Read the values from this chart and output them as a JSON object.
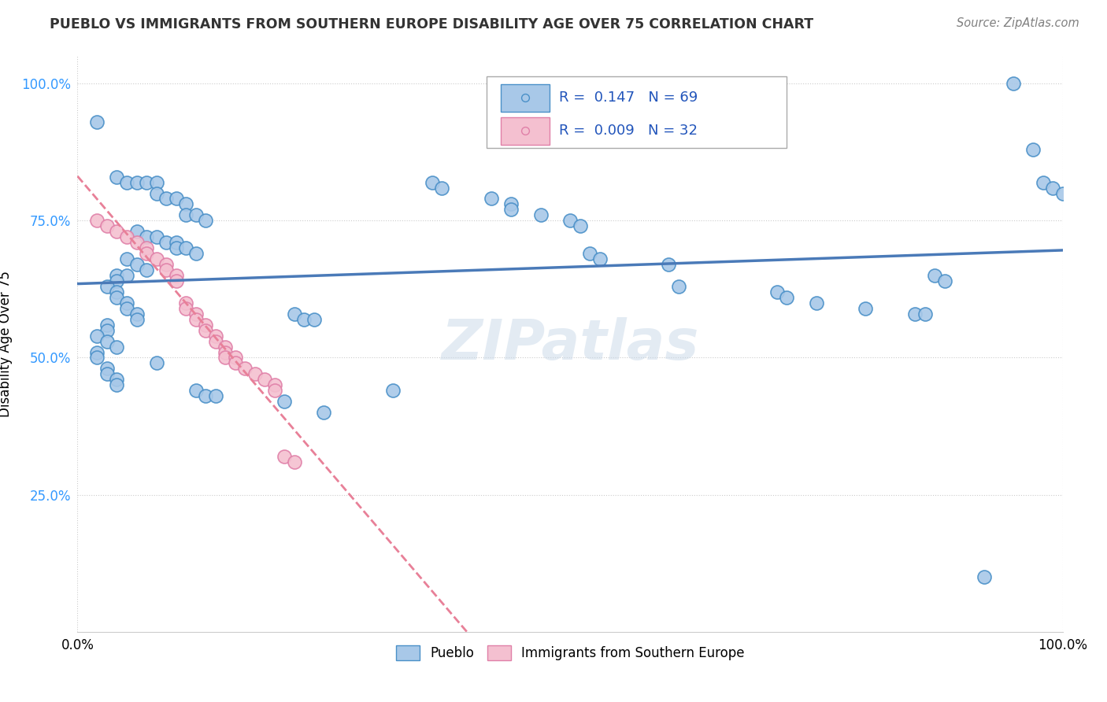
{
  "title": "PUEBLO VS IMMIGRANTS FROM SOUTHERN EUROPE DISABILITY AGE OVER 75 CORRELATION CHART",
  "source": "Source: ZipAtlas.com",
  "ylabel": "Disability Age Over 75",
  "xlim": [
    0.0,
    1.0
  ],
  "ylim": [
    0.0,
    1.05
  ],
  "ytick_labels": [
    "25.0%",
    "50.0%",
    "75.0%",
    "100.0%"
  ],
  "ytick_positions": [
    0.25,
    0.5,
    0.75,
    1.0
  ],
  "watermark": "ZIPatlas",
  "pueblo_color": "#a8c8e8",
  "pueblo_edge": "#4a90c8",
  "immig_color": "#f4c0d0",
  "immig_edge": "#e080a8",
  "pueblo_line_color": "#4a7ab8",
  "immig_line_color": "#e88098",
  "pueblo_points": [
    [
      0.02,
      0.93
    ],
    [
      0.04,
      0.83
    ],
    [
      0.05,
      0.82
    ],
    [
      0.06,
      0.82
    ],
    [
      0.07,
      0.82
    ],
    [
      0.08,
      0.82
    ],
    [
      0.08,
      0.8
    ],
    [
      0.09,
      0.79
    ],
    [
      0.1,
      0.79
    ],
    [
      0.11,
      0.78
    ],
    [
      0.11,
      0.76
    ],
    [
      0.12,
      0.76
    ],
    [
      0.13,
      0.75
    ],
    [
      0.06,
      0.73
    ],
    [
      0.07,
      0.72
    ],
    [
      0.08,
      0.72
    ],
    [
      0.09,
      0.71
    ],
    [
      0.1,
      0.71
    ],
    [
      0.1,
      0.7
    ],
    [
      0.11,
      0.7
    ],
    [
      0.12,
      0.69
    ],
    [
      0.05,
      0.68
    ],
    [
      0.06,
      0.67
    ],
    [
      0.07,
      0.66
    ],
    [
      0.04,
      0.65
    ],
    [
      0.05,
      0.65
    ],
    [
      0.04,
      0.64
    ],
    [
      0.03,
      0.63
    ],
    [
      0.04,
      0.62
    ],
    [
      0.04,
      0.61
    ],
    [
      0.05,
      0.6
    ],
    [
      0.05,
      0.59
    ],
    [
      0.06,
      0.58
    ],
    [
      0.06,
      0.57
    ],
    [
      0.03,
      0.56
    ],
    [
      0.03,
      0.55
    ],
    [
      0.02,
      0.54
    ],
    [
      0.03,
      0.53
    ],
    [
      0.04,
      0.52
    ],
    [
      0.02,
      0.51
    ],
    [
      0.02,
      0.5
    ],
    [
      0.08,
      0.49
    ],
    [
      0.03,
      0.48
    ],
    [
      0.03,
      0.47
    ],
    [
      0.04,
      0.46
    ],
    [
      0.04,
      0.45
    ],
    [
      0.12,
      0.44
    ],
    [
      0.13,
      0.43
    ],
    [
      0.14,
      0.43
    ],
    [
      0.21,
      0.42
    ],
    [
      0.22,
      0.58
    ],
    [
      0.23,
      0.57
    ],
    [
      0.24,
      0.57
    ],
    [
      0.25,
      0.4
    ],
    [
      0.32,
      0.44
    ],
    [
      0.36,
      0.82
    ],
    [
      0.37,
      0.81
    ],
    [
      0.42,
      0.79
    ],
    [
      0.44,
      0.78
    ],
    [
      0.44,
      0.77
    ],
    [
      0.47,
      0.76
    ],
    [
      0.5,
      0.75
    ],
    [
      0.51,
      0.74
    ],
    [
      0.52,
      0.69
    ],
    [
      0.53,
      0.68
    ],
    [
      0.6,
      0.67
    ],
    [
      0.61,
      0.63
    ],
    [
      0.71,
      0.62
    ],
    [
      0.72,
      0.61
    ],
    [
      0.75,
      0.6
    ],
    [
      0.8,
      0.59
    ],
    [
      0.85,
      0.58
    ],
    [
      0.86,
      0.58
    ],
    [
      0.87,
      0.65
    ],
    [
      0.88,
      0.64
    ],
    [
      0.92,
      0.1
    ],
    [
      0.95,
      1.0
    ],
    [
      0.97,
      0.88
    ],
    [
      0.98,
      0.82
    ],
    [
      0.99,
      0.81
    ],
    [
      1.0,
      0.8
    ]
  ],
  "immig_points": [
    [
      0.02,
      0.75
    ],
    [
      0.03,
      0.74
    ],
    [
      0.04,
      0.73
    ],
    [
      0.05,
      0.72
    ],
    [
      0.06,
      0.71
    ],
    [
      0.07,
      0.7
    ],
    [
      0.07,
      0.69
    ],
    [
      0.08,
      0.68
    ],
    [
      0.09,
      0.67
    ],
    [
      0.09,
      0.66
    ],
    [
      0.1,
      0.65
    ],
    [
      0.1,
      0.64
    ],
    [
      0.11,
      0.6
    ],
    [
      0.11,
      0.59
    ],
    [
      0.12,
      0.58
    ],
    [
      0.12,
      0.57
    ],
    [
      0.13,
      0.56
    ],
    [
      0.13,
      0.55
    ],
    [
      0.14,
      0.54
    ],
    [
      0.14,
      0.53
    ],
    [
      0.15,
      0.52
    ],
    [
      0.15,
      0.51
    ],
    [
      0.15,
      0.5
    ],
    [
      0.16,
      0.5
    ],
    [
      0.16,
      0.49
    ],
    [
      0.17,
      0.48
    ],
    [
      0.18,
      0.47
    ],
    [
      0.19,
      0.46
    ],
    [
      0.2,
      0.45
    ],
    [
      0.2,
      0.44
    ],
    [
      0.21,
      0.32
    ],
    [
      0.22,
      0.31
    ]
  ]
}
